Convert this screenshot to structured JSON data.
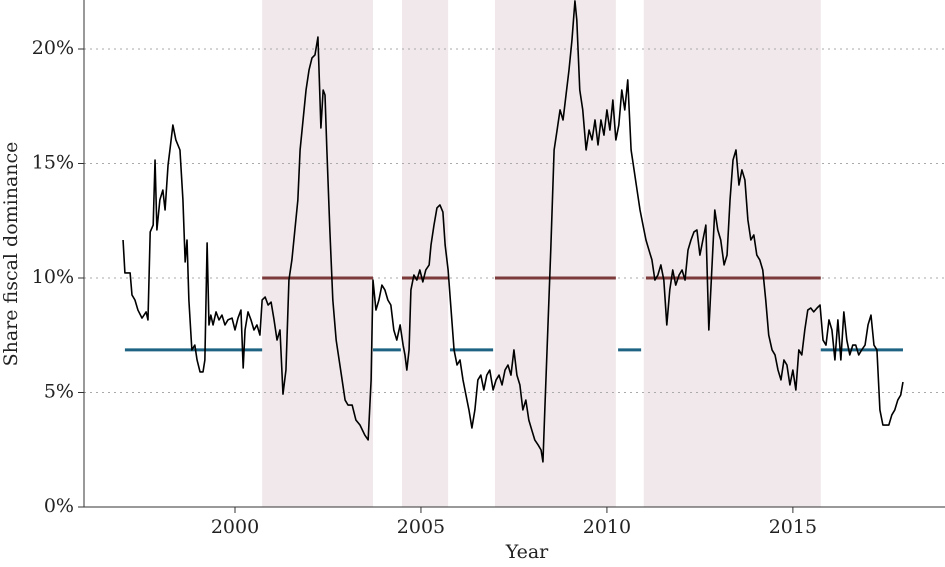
{
  "chart_data": {
    "type": "line",
    "x_label": "Year",
    "y_label": "Share fiscal dominance",
    "xlim": [
      1995.94,
      2019.09
    ],
    "ylim": [
      0,
      22.14
    ],
    "xticks": [
      2000,
      2005,
      2010,
      2015
    ],
    "yticks": [
      {
        "value": 0,
        "label": "0%"
      },
      {
        "value": 5,
        "label": "5%"
      },
      {
        "value": 10,
        "label": "10%"
      },
      {
        "value": 15,
        "label": "15%"
      },
      {
        "value": 20,
        "label": "20%"
      }
    ],
    "grid": true,
    "shade_color": "#f0e8ea",
    "shaded_periods": [
      {
        "start": 2000.73,
        "end": 2003.71
      },
      {
        "start": 2004.49,
        "end": 2005.73
      },
      {
        "start": 2006.99,
        "end": 2010.24
      },
      {
        "start": 2010.99,
        "end": 2015.75
      }
    ],
    "segments": [
      {
        "start": 1997.04,
        "end": 2000.73,
        "level": 6.86,
        "color": "#1f6383"
      },
      {
        "start": 2003.71,
        "end": 2004.46,
        "level": 6.86,
        "color": "#1f6383"
      },
      {
        "start": 2005.78,
        "end": 2006.94,
        "level": 6.86,
        "color": "#1f6383"
      },
      {
        "start": 2010.3,
        "end": 2010.92,
        "level": 6.86,
        "color": "#1f6383"
      },
      {
        "start": 2015.75,
        "end": 2017.96,
        "level": 6.86,
        "color": "#1f6383"
      },
      {
        "start": 2000.73,
        "end": 2003.71,
        "level": 10,
        "color": "#7d3a3a"
      },
      {
        "start": 2004.49,
        "end": 2005.73,
        "level": 10,
        "color": "#7d3a3a"
      },
      {
        "start": 2006.99,
        "end": 2010.24,
        "level": 10,
        "color": "#7d3a3a"
      },
      {
        "start": 2011.05,
        "end": 2015.75,
        "level": 10,
        "color": "#7d3a3a"
      }
    ],
    "x": [
      1996.99,
      1997.04,
      1997.18,
      1997.23,
      1997.31,
      1997.39,
      1997.5,
      1997.61,
      1997.66,
      1997.72,
      1997.8,
      1997.85,
      1997.9,
      1997.98,
      1998.06,
      1998.12,
      1998.2,
      1998.25,
      1998.33,
      1998.41,
      1998.52,
      1998.6,
      1998.66,
      1998.71,
      1998.76,
      1998.84,
      1998.92,
      1998.98,
      1999.06,
      1999.14,
      1999.19,
      1999.25,
      1999.3,
      1999.35,
      1999.41,
      1999.49,
      1999.57,
      1999.65,
      1999.73,
      1999.81,
      1999.92,
      2000.0,
      2000.08,
      2000.16,
      2000.22,
      2000.27,
      2000.35,
      2000.43,
      2000.51,
      2000.59,
      2000.67,
      2000.73,
      2000.81,
      2000.89,
      2000.97,
      2001.05,
      2001.13,
      2001.21,
      2001.29,
      2001.37,
      2001.45,
      2001.53,
      2001.61,
      2001.69,
      2001.75,
      2001.83,
      2001.91,
      2001.99,
      2002.07,
      2002.15,
      2002.23,
      2002.31,
      2002.37,
      2002.42,
      2002.47,
      2002.55,
      2002.63,
      2002.72,
      2002.8,
      2002.88,
      2002.96,
      2003.04,
      2003.15,
      2003.25,
      2003.36,
      2003.49,
      2003.58,
      2003.66,
      2003.71,
      2003.79,
      2003.87,
      2003.95,
      2004.03,
      2004.11,
      2004.19,
      2004.27,
      2004.35,
      2004.44,
      2004.52,
      2004.57,
      2004.62,
      2004.68,
      2004.73,
      2004.81,
      2004.89,
      2004.97,
      2005.05,
      2005.13,
      2005.22,
      2005.27,
      2005.35,
      2005.43,
      2005.51,
      2005.59,
      2005.65,
      2005.73,
      2005.81,
      2005.89,
      2005.97,
      2006.05,
      2006.13,
      2006.21,
      2006.29,
      2006.37,
      2006.45,
      2006.53,
      2006.61,
      2006.69,
      2006.77,
      2006.85,
      2006.94,
      2007.02,
      2007.1,
      2007.18,
      2007.26,
      2007.34,
      2007.42,
      2007.5,
      2007.58,
      2007.66,
      2007.74,
      2007.82,
      2007.9,
      2007.98,
      2008.06,
      2008.15,
      2008.23,
      2008.28,
      2008.33,
      2008.41,
      2008.49,
      2008.58,
      2008.66,
      2008.74,
      2008.82,
      2008.9,
      2008.98,
      2009.06,
      2009.14,
      2009.19,
      2009.27,
      2009.35,
      2009.44,
      2009.52,
      2009.6,
      2009.68,
      2009.76,
      2009.84,
      2009.92,
      2010.0,
      2010.08,
      2010.16,
      2010.24,
      2010.32,
      2010.4,
      2010.48,
      2010.56,
      2010.65,
      2010.73,
      2010.81,
      2010.89,
      2010.97,
      2011.05,
      2011.13,
      2011.21,
      2011.29,
      2011.37,
      2011.45,
      2011.53,
      2011.61,
      2011.69,
      2011.77,
      2011.85,
      2011.94,
      2012.02,
      2012.1,
      2012.18,
      2012.26,
      2012.34,
      2012.42,
      2012.5,
      2012.58,
      2012.66,
      2012.74,
      2012.82,
      2012.9,
      2012.98,
      2013.06,
      2013.15,
      2013.23,
      2013.31,
      2013.39,
      2013.47,
      2013.55,
      2013.63,
      2013.71,
      2013.79,
      2013.87,
      2013.95,
      2014.03,
      2014.11,
      2014.19,
      2014.27,
      2014.35,
      2014.44,
      2014.52,
      2014.6,
      2014.68,
      2014.76,
      2014.84,
      2014.92,
      2015.0,
      2015.08,
      2015.16,
      2015.24,
      2015.32,
      2015.4,
      2015.48,
      2015.56,
      2015.65,
      2015.73,
      2015.81,
      2015.89,
      2015.97,
      2016.05,
      2016.13,
      2016.21,
      2016.29,
      2016.37,
      2016.45,
      2016.53,
      2016.61,
      2016.69,
      2016.77,
      2016.85,
      2016.94,
      2017.02,
      2017.1,
      2017.18,
      2017.26,
      2017.34,
      2017.42,
      2017.5,
      2017.58,
      2017.66,
      2017.74,
      2017.82,
      2017.9,
      2017.96
    ],
    "series": [
      {
        "color": "#000000",
        "values": [
          11.66,
          10.22,
          10.22,
          9.26,
          9.04,
          8.6,
          8.25,
          8.52,
          8.17,
          12.01,
          12.31,
          15.15,
          12.1,
          13.41,
          13.84,
          12.97,
          14.93,
          15.59,
          16.68,
          16.03,
          15.59,
          13.41,
          10.7,
          11.66,
          9.04,
          6.86,
          7.07,
          6.42,
          5.9,
          5.9,
          6.42,
          11.53,
          7.95,
          8.38,
          7.95,
          8.52,
          8.17,
          8.38,
          7.95,
          8.17,
          8.25,
          7.73,
          8.25,
          8.6,
          6.07,
          7.73,
          8.52,
          8.17,
          7.73,
          7.95,
          7.51,
          9.04,
          9.17,
          8.82,
          8.95,
          8.17,
          7.29,
          7.73,
          4.93,
          5.98,
          9.91,
          10.79,
          12.1,
          13.41,
          15.59,
          16.9,
          18.21,
          19.08,
          19.61,
          19.74,
          20.52,
          16.55,
          18.21,
          17.99,
          15.59,
          12.1,
          9.04,
          7.29,
          6.42,
          5.55,
          4.67,
          4.45,
          4.45,
          3.8,
          3.58,
          3.14,
          2.93,
          5.55,
          9.91,
          8.6,
          9.04,
          9.69,
          9.48,
          9.04,
          8.82,
          7.73,
          7.29,
          7.95,
          7.07,
          6.64,
          5.98,
          6.86,
          9.48,
          10.13,
          9.91,
          10.35,
          9.83,
          10.35,
          10.57,
          11.44,
          12.31,
          13.06,
          13.19,
          12.88,
          11.44,
          10.35,
          8.6,
          6.86,
          6.2,
          6.42,
          5.55,
          4.89,
          4.24,
          3.45,
          4.24,
          5.55,
          5.76,
          5.11,
          5.76,
          5.98,
          5.11,
          5.55,
          5.76,
          5.33,
          5.98,
          6.2,
          5.76,
          6.86,
          5.76,
          5.33,
          4.24,
          4.67,
          3.8,
          3.36,
          2.93,
          2.71,
          2.49,
          1.97,
          4.24,
          7.73,
          11.22,
          15.59,
          16.46,
          17.34,
          16.9,
          17.99,
          19.08,
          20.39,
          22.1,
          21.27,
          18.21,
          17.34,
          15.59,
          16.46,
          16.03,
          16.9,
          15.81,
          16.9,
          16.24,
          17.34,
          16.46,
          17.77,
          16.03,
          16.68,
          18.21,
          17.34,
          18.65,
          15.59,
          14.72,
          13.84,
          12.97,
          12.31,
          11.66,
          11.22,
          10.79,
          9.91,
          10.13,
          10.57,
          9.91,
          7.95,
          9.48,
          10.35,
          9.69,
          10.13,
          10.35,
          9.91,
          11.22,
          11.66,
          12.01,
          12.1,
          11.0,
          11.66,
          12.31,
          7.73,
          10.35,
          12.97,
          12.1,
          11.66,
          10.57,
          11.0,
          13.41,
          15.15,
          15.59,
          14.06,
          14.72,
          14.28,
          12.54,
          11.66,
          11.88,
          11.0,
          10.79,
          10.35,
          9.04,
          7.51,
          6.86,
          6.64,
          5.98,
          5.55,
          6.42,
          6.2,
          5.33,
          5.98,
          5.11,
          6.86,
          6.64,
          7.73,
          8.6,
          8.69,
          8.52,
          8.69,
          8.82,
          7.29,
          7.07,
          8.17,
          7.73,
          6.42,
          8.17,
          6.42,
          8.52,
          7.29,
          6.64,
          7.07,
          7.07,
          6.64,
          6.86,
          7.07,
          7.95,
          8.38,
          7.07,
          6.86,
          4.24,
          3.58,
          3.58,
          3.58,
          4.02,
          4.24,
          4.67,
          4.89,
          5.46
        ]
      }
    ]
  }
}
